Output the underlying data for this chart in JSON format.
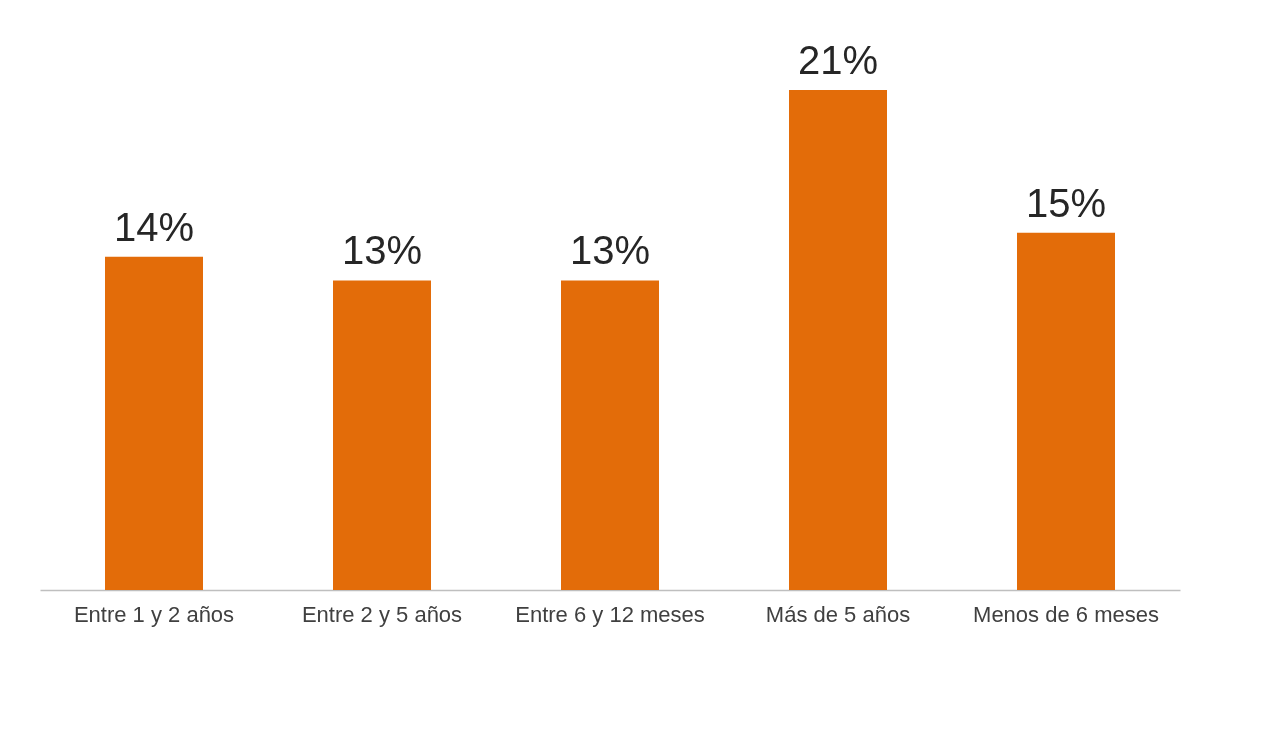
{
  "chart_data": {
    "type": "bar",
    "categories": [
      "Entre 1 y 2 años",
      "Entre 2 y 5 años",
      "Entre 6 y 12 meses",
      "Más de 5 años",
      "Menos de 6 meses"
    ],
    "values": [
      14,
      13,
      13,
      21,
      15
    ],
    "value_labels": [
      "14%",
      "13%",
      "13%",
      "21%",
      "15%"
    ],
    "color": "#e36c09",
    "grid": false
  }
}
